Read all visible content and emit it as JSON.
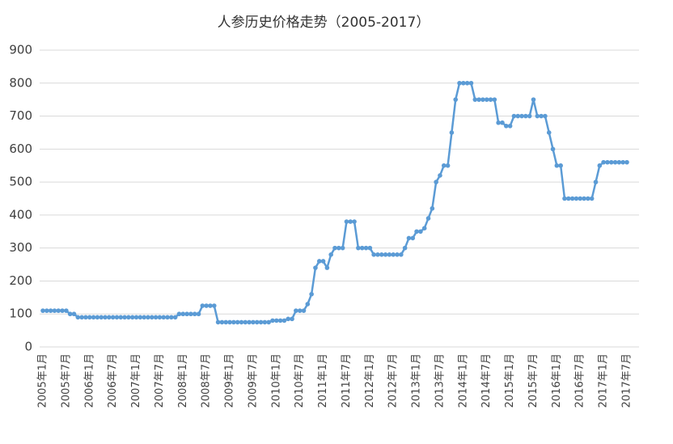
{
  "chart_data": {
    "type": "line",
    "title": "人参历史价格走势（2005-2017）",
    "color": "#5b9bd5",
    "grid": true,
    "ylim": [
      0,
      900
    ],
    "yticks": [
      0,
      100,
      200,
      300,
      400,
      500,
      600,
      700,
      800,
      900
    ],
    "categories": [
      "2005年1月",
      null,
      null,
      null,
      null,
      null,
      "2005年7月",
      null,
      null,
      null,
      null,
      null,
      "2006年1月",
      null,
      null,
      null,
      null,
      null,
      "2006年7月",
      null,
      null,
      null,
      null,
      null,
      "2007年1月",
      null,
      null,
      null,
      null,
      null,
      "2007年7月",
      null,
      null,
      null,
      null,
      null,
      "2008年1月",
      null,
      null,
      null,
      null,
      null,
      "2008年7月",
      null,
      null,
      null,
      null,
      null,
      "2009年1月",
      null,
      null,
      null,
      null,
      null,
      "2009年7月",
      null,
      null,
      null,
      null,
      null,
      "2010年1月",
      null,
      null,
      null,
      null,
      null,
      "2010年7月",
      null,
      null,
      null,
      null,
      null,
      "2011年1月",
      null,
      null,
      null,
      null,
      null,
      "2011年7月",
      null,
      null,
      null,
      null,
      null,
      "2012年1月",
      null,
      null,
      null,
      null,
      null,
      "2012年7月",
      null,
      null,
      null,
      null,
      null,
      "2013年1月",
      null,
      null,
      null,
      null,
      null,
      "2013年7月",
      null,
      null,
      null,
      null,
      null,
      "2014年1月",
      null,
      null,
      null,
      null,
      null,
      "2014年7月",
      null,
      null,
      null,
      null,
      null,
      "2015年1月",
      null,
      null,
      null,
      null,
      null,
      "2015年7月",
      null,
      null,
      null,
      null,
      null,
      "2016年1月",
      null,
      null,
      null,
      null,
      null,
      "2016年7月",
      null,
      null,
      null,
      null,
      null,
      "2017年1月",
      null,
      null,
      null,
      null,
      null,
      "2017年7月"
    ],
    "values": [
      110,
      110,
      110,
      110,
      110,
      110,
      110,
      100,
      100,
      90,
      90,
      90,
      90,
      90,
      90,
      90,
      90,
      90,
      90,
      90,
      90,
      90,
      90,
      90,
      90,
      90,
      90,
      90,
      90,
      90,
      90,
      90,
      90,
      90,
      90,
      100,
      100,
      100,
      100,
      100,
      100,
      125,
      125,
      125,
      125,
      75,
      75,
      75,
      75,
      75,
      75,
      75,
      75,
      75,
      75,
      75,
      75,
      75,
      75,
      80,
      80,
      80,
      80,
      85,
      85,
      110,
      110,
      110,
      130,
      160,
      240,
      260,
      260,
      240,
      280,
      300,
      300,
      300,
      380,
      380,
      380,
      300,
      300,
      300,
      300,
      280,
      280,
      280,
      280,
      280,
      280,
      280,
      280,
      300,
      330,
      330,
      350,
      350,
      360,
      390,
      420,
      500,
      520,
      550,
      550,
      650,
      750,
      800,
      800,
      800,
      800,
      750,
      750,
      750,
      750,
      750,
      750,
      680,
      680,
      670,
      670,
      700,
      700,
      700,
      700,
      700,
      750,
      700,
      700,
      700,
      650,
      600,
      550,
      550,
      450,
      450,
      450,
      450,
      450,
      450,
      450,
      450,
      500,
      550,
      560,
      560,
      560,
      560,
      560,
      560,
      560
    ]
  }
}
